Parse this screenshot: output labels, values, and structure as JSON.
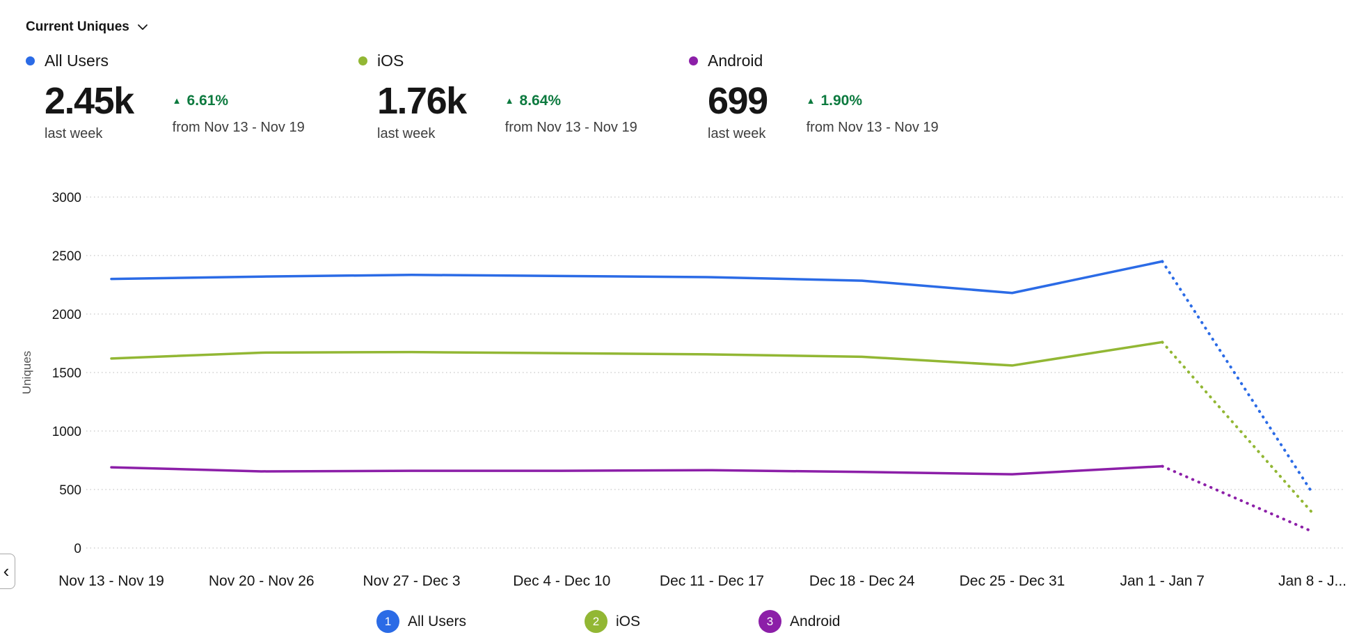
{
  "header": {
    "title": "Current Uniques"
  },
  "icons": {
    "up_triangle": "▲",
    "scroll_left": "‹"
  },
  "colors": {
    "all_users": "#2b6be6",
    "ios": "#92b734",
    "android": "#8c1fa8",
    "positive_change": "#0d7a3f",
    "grid": "#c6c6c6",
    "axis_text": "#161616",
    "secondary_text": "#525252"
  },
  "stats": [
    {
      "name": "All Users",
      "value": "2.45k",
      "period": "last week",
      "change": "6.61%",
      "direction": "up",
      "compare": "from Nov 13 - Nov 19"
    },
    {
      "name": "iOS",
      "value": "1.76k",
      "period": "last week",
      "change": "8.64%",
      "direction": "up",
      "compare": "from Nov 13 - Nov 19"
    },
    {
      "name": "Android",
      "value": "699",
      "period": "last week",
      "change": "1.90%",
      "direction": "up",
      "compare": "from Nov 13 - Nov 19"
    }
  ],
  "chart_data": {
    "type": "line",
    "title": "Current Uniques",
    "xlabel": "",
    "ylabel": "Uniques",
    "ylim": [
      0,
      3000
    ],
    "yticks": [
      0,
      500,
      1000,
      1500,
      2000,
      2500,
      3000
    ],
    "grid": "horizontal-dotted",
    "legend_position": "bottom",
    "incomplete_last_point_dotted": true,
    "categories": [
      "Nov 13 - Nov 19",
      "Nov 20 - Nov 26",
      "Nov 27 - Dec 3",
      "Dec 4 - Dec 10",
      "Dec 11 - Dec 17",
      "Dec 18 - Dec 24",
      "Dec 25 - Dec 31",
      "Jan 1 - Jan 7",
      "Jan 8 - J..."
    ],
    "series": [
      {
        "name": "All Users",
        "color": "#2b6be6",
        "values": [
          2300,
          2320,
          2335,
          2325,
          2315,
          2285,
          2180,
          2450,
          470
        ]
      },
      {
        "name": "iOS",
        "color": "#92b734",
        "values": [
          1620,
          1670,
          1675,
          1665,
          1655,
          1635,
          1560,
          1760,
          300
        ]
      },
      {
        "name": "Android",
        "color": "#8c1fa8",
        "values": [
          690,
          655,
          660,
          660,
          665,
          650,
          630,
          699,
          140
        ]
      }
    ]
  },
  "legend": [
    {
      "number": "1",
      "label": "All Users"
    },
    {
      "number": "2",
      "label": "iOS"
    },
    {
      "number": "3",
      "label": "Android"
    }
  ]
}
